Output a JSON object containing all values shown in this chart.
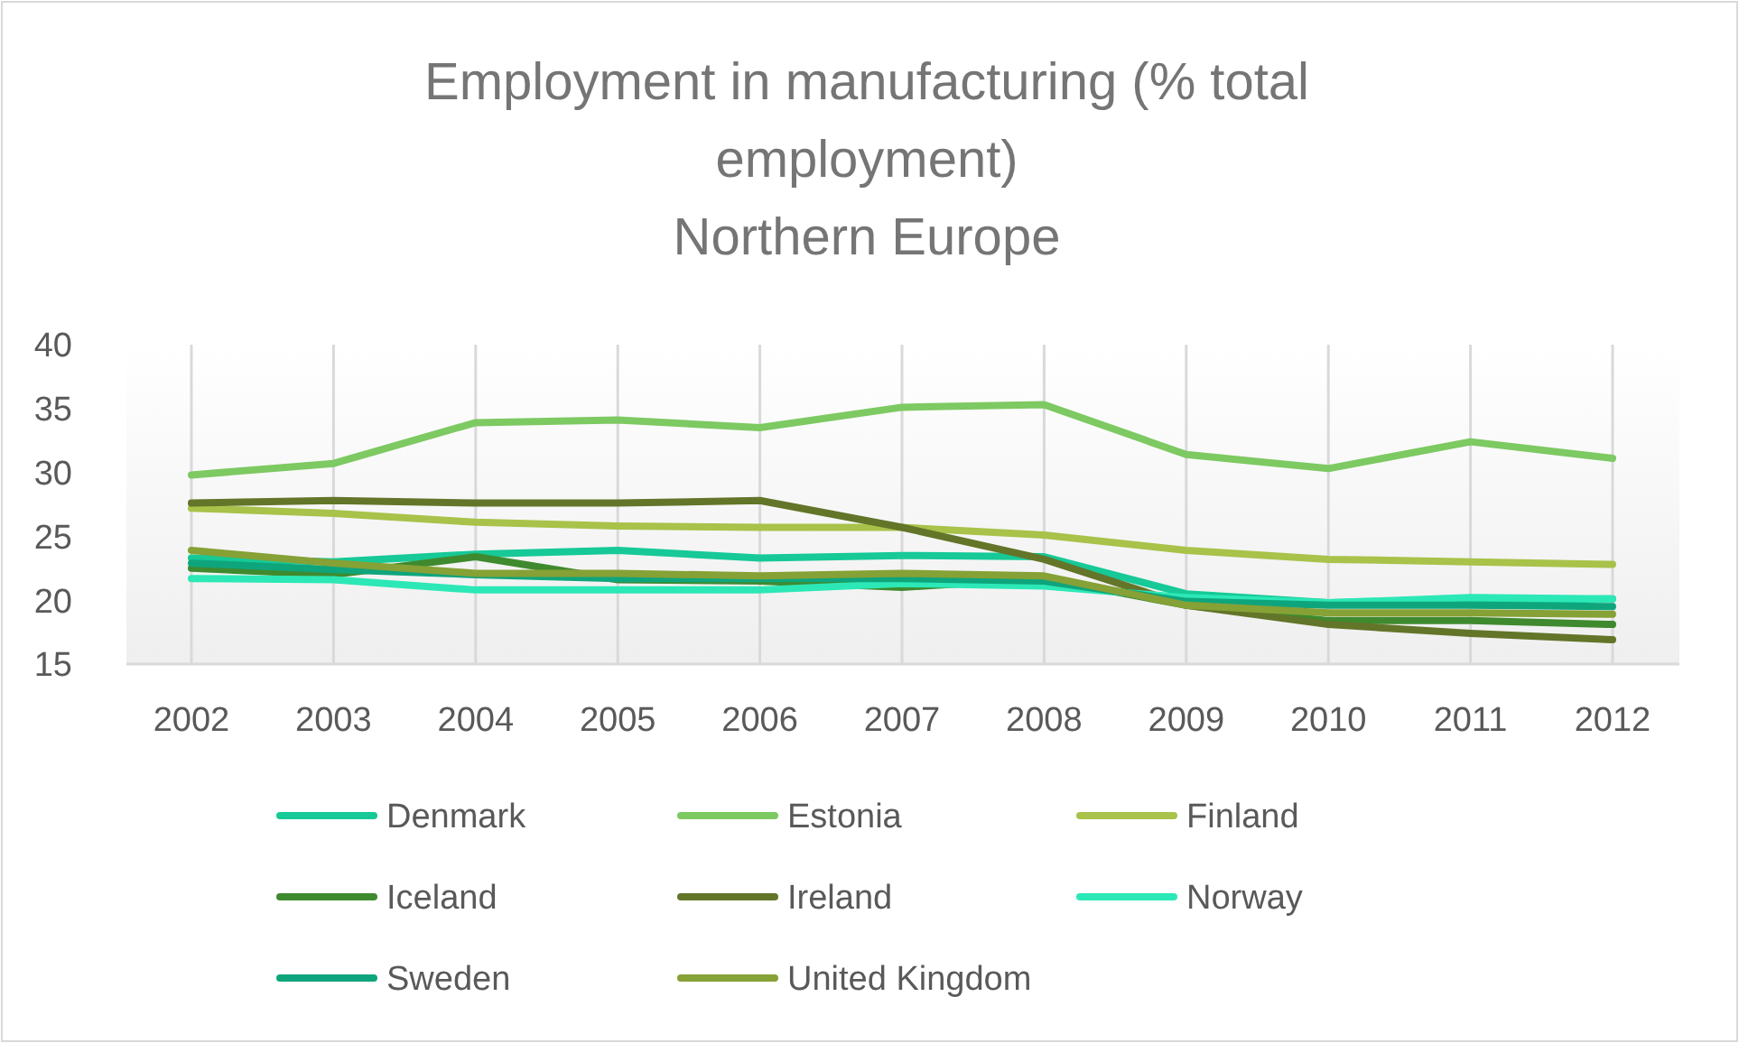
{
  "chart_data": {
    "type": "line",
    "title": "Employment in manufacturing (% total employment)",
    "subtitle": "Northern Europe",
    "categories": [
      "2002",
      "2003",
      "2004",
      "2005",
      "2006",
      "2007",
      "2008",
      "2009",
      "2010",
      "2011",
      "2012"
    ],
    "ylim": [
      15,
      40
    ],
    "yticks": [
      15,
      20,
      25,
      30,
      35,
      40
    ],
    "grid": "x",
    "legend": "bottom",
    "line_style": "solid",
    "marker": "none",
    "series": [
      {
        "name": "Denmark",
        "color": "#16c997",
        "values": [
          23.3,
          23.0,
          23.6,
          23.9,
          23.3,
          23.5,
          23.4,
          20.5,
          19.8,
          20.0,
          20.1
        ]
      },
      {
        "name": "Estonia",
        "color": "#7dc962",
        "values": [
          29.8,
          30.7,
          33.9,
          34.1,
          33.5,
          35.1,
          35.3,
          31.4,
          30.3,
          32.4,
          31.1
        ]
      },
      {
        "name": "Finland",
        "color": "#a8c24a",
        "values": [
          27.2,
          26.8,
          26.1,
          25.8,
          25.7,
          25.7,
          25.1,
          23.9,
          23.2,
          23.0,
          22.8
        ]
      },
      {
        "name": "Iceland",
        "color": "#3f8a2e",
        "values": [
          22.5,
          22.0,
          23.4,
          21.6,
          21.5,
          21.0,
          21.7,
          19.6,
          18.4,
          18.4,
          18.1
        ]
      },
      {
        "name": "Ireland",
        "color": "#637529",
        "values": [
          27.6,
          27.8,
          27.6,
          27.6,
          27.8,
          25.7,
          23.2,
          19.6,
          18.1,
          17.4,
          16.9
        ]
      },
      {
        "name": "Norway",
        "color": "#2ce8b6",
        "values": [
          21.7,
          21.6,
          20.8,
          20.8,
          20.8,
          21.3,
          21.1,
          20.2,
          19.8,
          20.2,
          20.1
        ]
      },
      {
        "name": "Sweden",
        "color": "#0fa57c",
        "values": [
          22.9,
          22.4,
          22.0,
          21.7,
          21.7,
          21.7,
          21.5,
          19.9,
          19.6,
          19.6,
          19.5
        ]
      },
      {
        "name": "United Kingdom",
        "color": "#86a135",
        "values": [
          23.9,
          22.9,
          22.1,
          22.1,
          21.9,
          22.1,
          21.9,
          19.6,
          19.0,
          19.0,
          18.9
        ]
      }
    ]
  }
}
